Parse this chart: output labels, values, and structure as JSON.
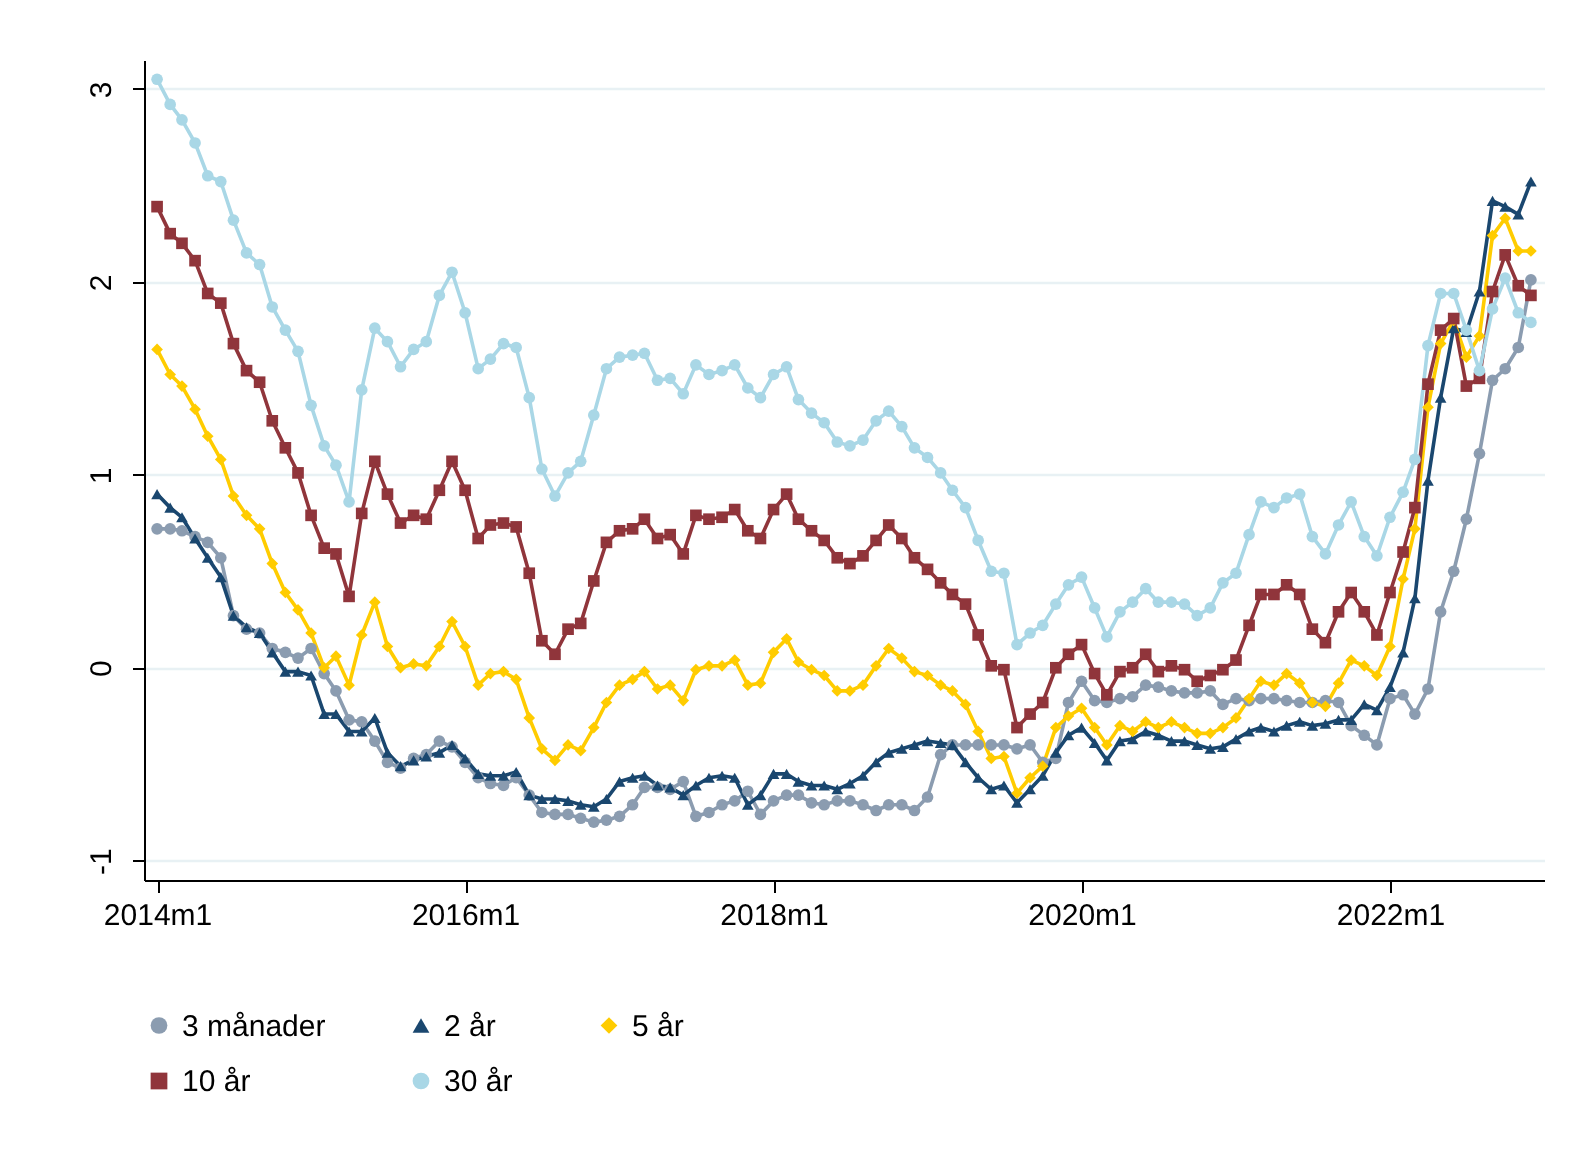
{
  "chart_data": {
    "type": "line",
    "x": [
      "2014-01",
      "2014-02",
      "2014-03",
      "2014-04",
      "2014-05",
      "2014-06",
      "2014-07",
      "2014-08",
      "2014-09",
      "2014-10",
      "2014-11",
      "2014-12",
      "2015-01",
      "2015-02",
      "2015-03",
      "2015-04",
      "2015-05",
      "2015-06",
      "2015-07",
      "2015-08",
      "2015-09",
      "2015-10",
      "2015-11",
      "2015-12",
      "2016-01",
      "2016-02",
      "2016-03",
      "2016-04",
      "2016-05",
      "2016-06",
      "2016-07",
      "2016-08",
      "2016-09",
      "2016-10",
      "2016-11",
      "2016-12",
      "2017-01",
      "2017-02",
      "2017-03",
      "2017-04",
      "2017-05",
      "2017-06",
      "2017-07",
      "2017-08",
      "2017-09",
      "2017-10",
      "2017-11",
      "2017-12",
      "2018-01",
      "2018-02",
      "2018-03",
      "2018-04",
      "2018-05",
      "2018-06",
      "2018-07",
      "2018-08",
      "2018-09",
      "2018-10",
      "2018-11",
      "2018-12",
      "2019-01",
      "2019-02",
      "2019-03",
      "2019-04",
      "2019-05",
      "2019-06",
      "2019-07",
      "2019-08",
      "2019-09",
      "2019-10",
      "2019-11",
      "2019-12",
      "2020-01",
      "2020-02",
      "2020-03",
      "2020-04",
      "2020-05",
      "2020-06",
      "2020-07",
      "2020-08",
      "2020-09",
      "2020-10",
      "2020-11",
      "2020-12",
      "2021-01",
      "2021-02",
      "2021-03",
      "2021-04",
      "2021-05",
      "2021-06",
      "2021-07",
      "2021-08",
      "2021-09",
      "2021-10",
      "2021-11",
      "2021-12",
      "2022-01",
      "2022-02",
      "2022-03",
      "2022-04",
      "2022-05",
      "2022-06",
      "2022-07",
      "2022-08",
      "2022-09",
      "2022-10",
      "2022-11",
      "2022-12"
    ],
    "series": [
      {
        "name": "3 månader",
        "color": "#8b9cb0",
        "marker": "circle",
        "values": [
          0.72,
          0.72,
          0.71,
          0.68,
          0.65,
          0.57,
          0.27,
          0.2,
          0.18,
          0.1,
          0.08,
          0.05,
          0.1,
          -0.03,
          -0.12,
          -0.27,
          -0.28,
          -0.38,
          -0.49,
          -0.52,
          -0.47,
          -0.45,
          -0.38,
          -0.41,
          -0.49,
          -0.57,
          -0.6,
          -0.61,
          -0.57,
          -0.66,
          -0.75,
          -0.76,
          -0.76,
          -0.78,
          -0.8,
          -0.79,
          -0.77,
          -0.71,
          -0.62,
          -0.62,
          -0.63,
          -0.59,
          -0.77,
          -0.75,
          -0.71,
          -0.69,
          -0.64,
          -0.76,
          -0.69,
          -0.66,
          -0.66,
          -0.7,
          -0.71,
          -0.69,
          -0.69,
          -0.71,
          -0.74,
          -0.71,
          -0.71,
          -0.74,
          -0.67,
          -0.45,
          -0.4,
          -0.4,
          -0.4,
          -0.4,
          -0.4,
          -0.42,
          -0.4,
          -0.49,
          -0.47,
          -0.18,
          -0.07,
          -0.17,
          -0.18,
          -0.16,
          -0.15,
          -0.09,
          -0.1,
          -0.12,
          -0.13,
          -0.13,
          -0.12,
          -0.19,
          -0.16,
          -0.17,
          -0.16,
          -0.16,
          -0.17,
          -0.18,
          -0.18,
          -0.17,
          -0.18,
          -0.3,
          -0.35,
          -0.4,
          -0.16,
          -0.14,
          -0.24,
          -0.11,
          0.29,
          0.5,
          0.77,
          1.11,
          1.49,
          1.55,
          1.66,
          2.01
        ]
      },
      {
        "name": "2 år",
        "color": "#1a476f",
        "marker": "triangle",
        "values": [
          0.9,
          0.83,
          0.78,
          0.67,
          0.57,
          0.47,
          0.27,
          0.21,
          0.18,
          0.08,
          -0.02,
          -0.02,
          -0.04,
          -0.24,
          -0.24,
          -0.33,
          -0.33,
          -0.26,
          -0.44,
          -0.51,
          -0.48,
          -0.46,
          -0.44,
          -0.4,
          -0.47,
          -0.55,
          -0.56,
          -0.56,
          -0.54,
          -0.66,
          -0.68,
          -0.68,
          -0.69,
          -0.71,
          -0.72,
          -0.68,
          -0.59,
          -0.57,
          -0.56,
          -0.61,
          -0.62,
          -0.66,
          -0.61,
          -0.57,
          -0.56,
          -0.57,
          -0.71,
          -0.66,
          -0.55,
          -0.55,
          -0.59,
          -0.61,
          -0.61,
          -0.63,
          -0.6,
          -0.56,
          -0.49,
          -0.44,
          -0.42,
          -0.4,
          -0.38,
          -0.39,
          -0.4,
          -0.49,
          -0.57,
          -0.63,
          -0.61,
          -0.7,
          -0.63,
          -0.56,
          -0.44,
          -0.35,
          -0.31,
          -0.39,
          -0.48,
          -0.38,
          -0.37,
          -0.33,
          -0.35,
          -0.38,
          -0.38,
          -0.4,
          -0.42,
          -0.41,
          -0.37,
          -0.33,
          -0.31,
          -0.33,
          -0.3,
          -0.28,
          -0.3,
          -0.29,
          -0.27,
          -0.27,
          -0.19,
          -0.22,
          -0.1,
          0.08,
          0.36,
          0.97,
          1.4,
          1.76,
          1.74,
          1.95,
          2.42,
          2.39,
          2.35,
          2.52
        ]
      },
      {
        "name": "5 år",
        "color": "#ffcc00",
        "marker": "diamond",
        "values": [
          1.65,
          1.52,
          1.46,
          1.34,
          1.2,
          1.08,
          0.89,
          0.79,
          0.72,
          0.54,
          0.39,
          0.3,
          0.18,
          0.0,
          0.06,
          -0.09,
          0.17,
          0.34,
          0.11,
          0.0,
          0.02,
          0.01,
          0.11,
          0.24,
          0.11,
          -0.09,
          -0.03,
          -0.02,
          -0.06,
          -0.26,
          -0.42,
          -0.48,
          -0.4,
          -0.43,
          -0.31,
          -0.18,
          -0.09,
          -0.06,
          -0.02,
          -0.11,
          -0.09,
          -0.17,
          -0.01,
          0.01,
          0.01,
          0.04,
          -0.09,
          -0.08,
          0.08,
          0.15,
          0.03,
          -0.01,
          -0.04,
          -0.12,
          -0.12,
          -0.09,
          0.01,
          0.1,
          0.05,
          -0.02,
          -0.04,
          -0.09,
          -0.12,
          -0.19,
          -0.33,
          -0.47,
          -0.46,
          -0.65,
          -0.57,
          -0.51,
          -0.31,
          -0.25,
          -0.21,
          -0.31,
          -0.4,
          -0.3,
          -0.33,
          -0.28,
          -0.31,
          -0.28,
          -0.31,
          -0.34,
          -0.34,
          -0.31,
          -0.26,
          -0.16,
          -0.07,
          -0.09,
          -0.03,
          -0.08,
          -0.18,
          -0.2,
          -0.08,
          0.04,
          0.01,
          -0.04,
          0.11,
          0.46,
          0.72,
          1.35,
          1.68,
          1.8,
          1.61,
          1.72,
          2.24,
          2.33,
          2.16,
          2.16
        ]
      },
      {
        "name": "10 år",
        "color": "#90353b",
        "marker": "square",
        "values": [
          2.39,
          2.25,
          2.2,
          2.11,
          1.94,
          1.89,
          1.68,
          1.54,
          1.48,
          1.28,
          1.14,
          1.01,
          0.79,
          0.62,
          0.59,
          0.37,
          0.8,
          1.07,
          0.9,
          0.75,
          0.79,
          0.77,
          0.92,
          1.07,
          0.92,
          0.67,
          0.74,
          0.75,
          0.73,
          0.49,
          0.14,
          0.07,
          0.2,
          0.23,
          0.45,
          0.65,
          0.71,
          0.72,
          0.77,
          0.67,
          0.69,
          0.59,
          0.79,
          0.77,
          0.78,
          0.82,
          0.71,
          0.67,
          0.82,
          0.9,
          0.77,
          0.71,
          0.66,
          0.57,
          0.54,
          0.58,
          0.66,
          0.74,
          0.67,
          0.57,
          0.51,
          0.44,
          0.38,
          0.33,
          0.17,
          0.01,
          -0.01,
          -0.31,
          -0.24,
          -0.18,
          0.0,
          0.07,
          0.12,
          -0.03,
          -0.14,
          -0.02,
          0.0,
          0.07,
          -0.02,
          0.01,
          -0.01,
          -0.07,
          -0.04,
          -0.01,
          0.04,
          0.22,
          0.38,
          0.38,
          0.43,
          0.38,
          0.2,
          0.13,
          0.29,
          0.39,
          0.29,
          0.17,
          0.39,
          0.6,
          0.83,
          1.47,
          1.75,
          1.81,
          1.46,
          1.5,
          1.95,
          2.14,
          1.98,
          1.93
        ]
      },
      {
        "name": "30 år",
        "color": "#a9d7e6",
        "marker": "circle",
        "values": [
          3.05,
          2.92,
          2.84,
          2.72,
          2.55,
          2.52,
          2.32,
          2.15,
          2.09,
          1.87,
          1.75,
          1.64,
          1.36,
          1.15,
          1.05,
          0.86,
          1.44,
          1.76,
          1.69,
          1.56,
          1.65,
          1.69,
          1.93,
          2.05,
          1.84,
          1.55,
          1.6,
          1.68,
          1.66,
          1.4,
          1.03,
          0.89,
          1.01,
          1.07,
          1.31,
          1.55,
          1.61,
          1.62,
          1.63,
          1.49,
          1.5,
          1.42,
          1.57,
          1.52,
          1.54,
          1.57,
          1.45,
          1.4,
          1.52,
          1.56,
          1.39,
          1.32,
          1.27,
          1.17,
          1.15,
          1.18,
          1.28,
          1.33,
          1.25,
          1.14,
          1.09,
          1.01,
          0.92,
          0.83,
          0.66,
          0.5,
          0.49,
          0.12,
          0.18,
          0.22,
          0.33,
          0.43,
          0.47,
          0.31,
          0.16,
          0.29,
          0.34,
          0.41,
          0.34,
          0.34,
          0.33,
          0.27,
          0.31,
          0.44,
          0.49,
          0.69,
          0.86,
          0.83,
          0.88,
          0.9,
          0.68,
          0.59,
          0.74,
          0.86,
          0.68,
          0.58,
          0.78,
          0.91,
          1.08,
          1.67,
          1.94,
          1.94,
          1.75,
          1.54,
          1.86,
          2.02,
          1.84,
          1.79
        ]
      }
    ],
    "xlim": [
      "2013-12",
      "2023-01"
    ],
    "xticks": [
      {
        "value": "2014-01",
        "label": "2014m1"
      },
      {
        "value": "2016-01",
        "label": "2016m1"
      },
      {
        "value": "2018-01",
        "label": "2018m1"
      },
      {
        "value": "2020-01",
        "label": "2020m1"
      },
      {
        "value": "2022-01",
        "label": "2022m1"
      }
    ],
    "ylim": [
      -1.1,
      3.15
    ],
    "yticks": [
      -1,
      0,
      1,
      2,
      3
    ],
    "grid": "y",
    "legend": "bottom"
  }
}
